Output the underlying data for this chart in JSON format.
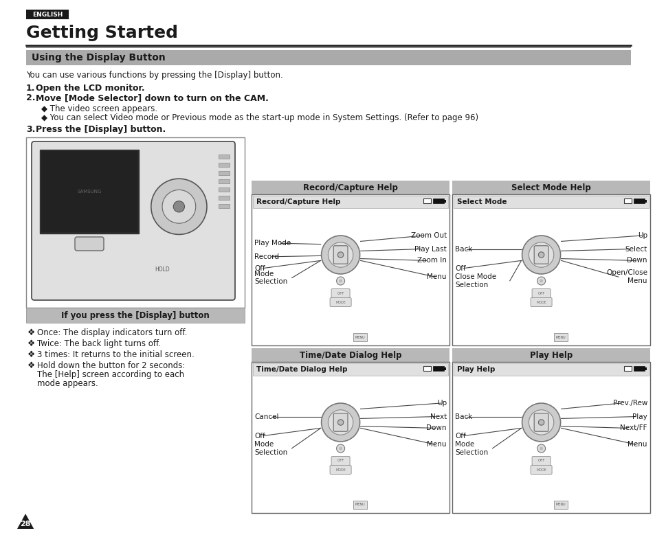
{
  "bg_color": "#ffffff",
  "page_width": 9.54,
  "page_height": 7.79,
  "english_label": "ENGLISH",
  "title": "Getting Started",
  "section_title": "Using the Display Button",
  "intro_text": "You can use various functions by pressing the [Display] button.",
  "step1_num": "1.",
  "step1": "Open the LCD monitor.",
  "step2_num": "2.",
  "step2": "Move [Mode Selector] down to turn on the CAM.",
  "bullet1": "◆ The video screen appears.",
  "bullet2": "◆ You can select Video mode or Previous mode as the start-up mode in System Settings. (Refer to page 96)",
  "step3_num": "3.",
  "step3": "Press the [Display] button.",
  "caption": "If you press the [Display] button",
  "bullet_sym": "❖",
  "b1": "Once: The display indicators turn off.",
  "b2": "Twice: The back light turns off.",
  "b3": "3 times: It returns to the initial screen.",
  "b4a": "Hold down the button for 2 seconds:",
  "b4b": "The [Help] screen according to each",
  "b4c": "mode appears.",
  "panel_titles": [
    "Record/Capture Help",
    "Select Mode Help",
    "Time/Date Dialog Help",
    "Play Help"
  ],
  "panel_inner_titles": [
    "Record/Capture Help",
    "Select Mode",
    "Time/Date Dialog Help",
    "Play Help"
  ],
  "panel1_labels_left": [
    "Play Mode",
    "Record",
    "Off",
    "Mode\nSelection"
  ],
  "panel1_labels_right": [
    "Zoom Out",
    "Play Last",
    "Zoom In",
    "Menu"
  ],
  "panel2_labels_left": [
    "Back",
    "Off",
    "Close Mode\nSelection"
  ],
  "panel2_labels_right": [
    "Up",
    "Select",
    "Down",
    "Open/Close\nMenu"
  ],
  "panel3_labels_left": [
    "Cancel",
    "Off",
    "Mode\nSelection"
  ],
  "panel3_labels_right": [
    "Up",
    "Next",
    "Down",
    "Menu"
  ],
  "panel4_labels_left": [
    "Back",
    "Off",
    "Mode\nSelection"
  ],
  "panel4_labels_right": [
    "Prev./Rew",
    "Play",
    "Next/FF",
    "Menu"
  ],
  "page_num": "28"
}
